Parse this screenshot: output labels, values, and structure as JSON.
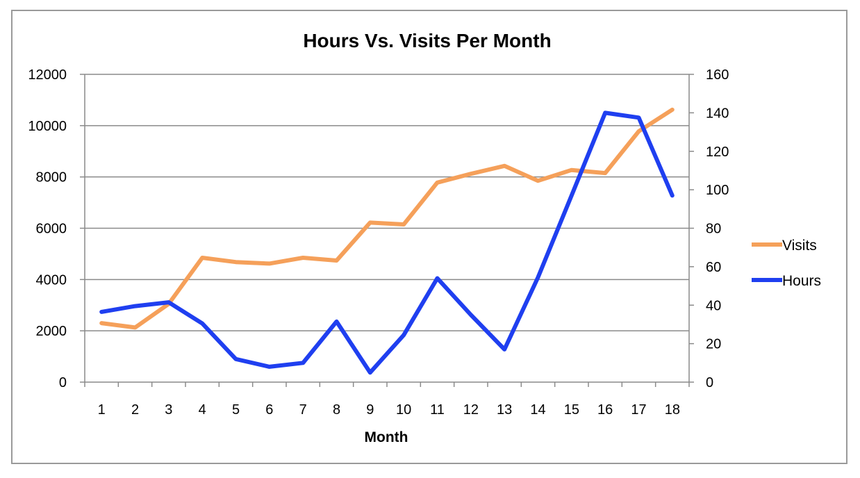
{
  "chart_data": {
    "type": "line",
    "title": "Hours Vs. Visits Per Month",
    "xlabel": "Month",
    "ylabel": "",
    "categories": [
      "1",
      "2",
      "3",
      "4",
      "5",
      "6",
      "7",
      "8",
      "9",
      "10",
      "11",
      "12",
      "13",
      "14",
      "15",
      "16",
      "17",
      "18"
    ],
    "y_left": {
      "ylim": [
        0,
        12000
      ],
      "ticks": [
        "0",
        "2000",
        "4000",
        "6000",
        "8000",
        "10000",
        "12000"
      ]
    },
    "y_right": {
      "ylim": [
        0,
        160
      ],
      "ticks": [
        "0",
        "20",
        "40",
        "60",
        "80",
        "100",
        "120",
        "140",
        "160"
      ]
    },
    "series": [
      {
        "name": "Visits",
        "axis": "left",
        "color": "#f5a05a",
        "values": [
          2300,
          2130,
          3050,
          4850,
          4680,
          4620,
          4850,
          4740,
          6220,
          6150,
          7780,
          8120,
          8430,
          7850,
          8270,
          8150,
          9780,
          10620
        ]
      },
      {
        "name": "Hours",
        "axis": "right",
        "color": "#1f3ff0",
        "values": [
          36.5,
          39.5,
          41.5,
          30.5,
          12,
          8,
          10,
          31.5,
          5,
          24.5,
          54,
          35,
          17,
          54.5,
          97,
          140,
          137.5,
          97
        ]
      }
    ],
    "grid": true,
    "legend_position": "right"
  }
}
